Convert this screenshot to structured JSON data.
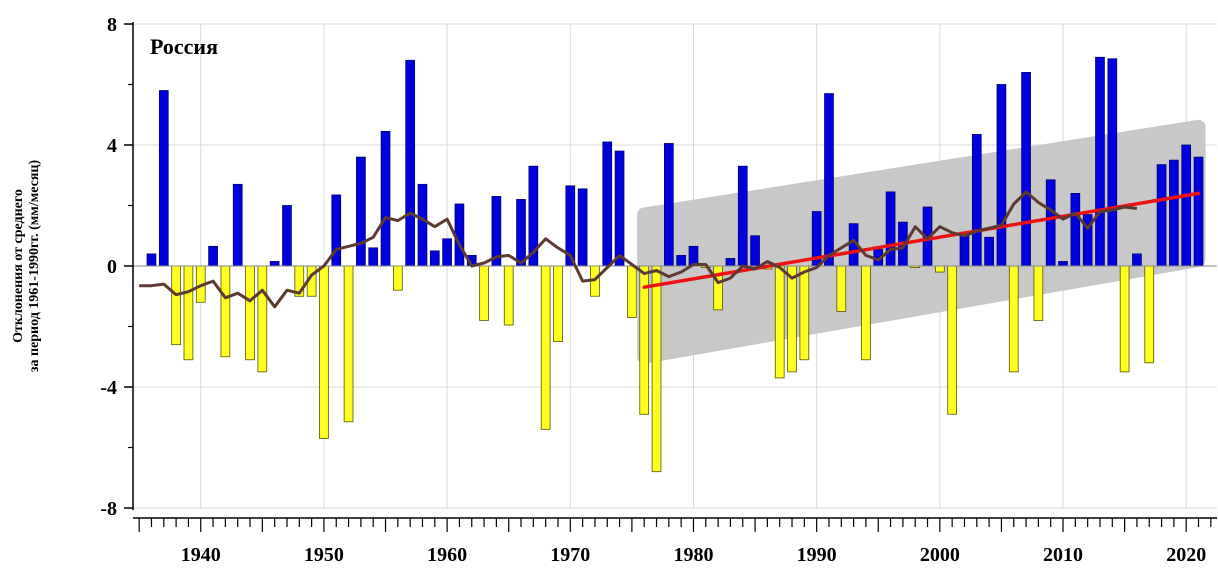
{
  "chart_data": {
    "type": "bar",
    "title": "Россия",
    "ylabel_line1": "Отклонения от среднего",
    "ylabel_line2": "за период 1961-1990гг. (мм/месяц)",
    "xlim": [
      1934.5,
      2022.5
    ],
    "ylim": [
      -8,
      8
    ],
    "grid": true,
    "x_tick_labels": [
      "1940",
      "1950",
      "1960",
      "1970",
      "1980",
      "1990",
      "2000",
      "2010",
      "2020"
    ],
    "y_tick_labels": [
      "8",
      "4",
      "0",
      "-4",
      "-8"
    ],
    "colors": {
      "positive": "#0000dd",
      "negative": "#ffff22",
      "moving_average": "#5c3a32",
      "trend": "#ee1111",
      "confidence_band": "#c8c8c8",
      "grid": "#d8d8d8"
    },
    "bars": {
      "years": [
        1936,
        1937,
        1938,
        1939,
        1940,
        1941,
        1942,
        1943,
        1944,
        1945,
        1946,
        1947,
        1948,
        1949,
        1950,
        1951,
        1952,
        1953,
        1954,
        1955,
        1956,
        1957,
        1958,
        1959,
        1960,
        1961,
        1962,
        1963,
        1964,
        1965,
        1966,
        1967,
        1968,
        1969,
        1970,
        1971,
        1972,
        1973,
        1974,
        1975,
        1976,
        1977,
        1978,
        1979,
        1980,
        1981,
        1982,
        1983,
        1984,
        1985,
        1986,
        1987,
        1988,
        1989,
        1990,
        1991,
        1992,
        1993,
        1994,
        1995,
        1996,
        1997,
        1998,
        1999,
        2000,
        2001,
        2002,
        2003,
        2004,
        2005,
        2006,
        2007,
        2008,
        2009,
        2010,
        2011,
        2012,
        2013,
        2014,
        2015,
        2016,
        2017,
        2018,
        2019,
        2020,
        2021
      ],
      "values": [
        0.4,
        5.8,
        -2.6,
        -3.1,
        -1.2,
        0.65,
        -3.0,
        2.7,
        -3.1,
        -3.5,
        0.15,
        2.0,
        -1.0,
        -1.0,
        -5.7,
        2.35,
        -5.15,
        3.6,
        0.6,
        4.45,
        -0.8,
        6.8,
        2.7,
        0.5,
        0.9,
        2.05,
        0.35,
        -1.8,
        2.3,
        -1.95,
        2.2,
        3.3,
        -5.4,
        -2.5,
        2.65,
        2.55,
        -1.0,
        4.1,
        3.8,
        -1.7,
        -4.9,
        -6.8,
        4.05,
        0.35,
        0.65,
        -0.05,
        -1.45,
        0.25,
        3.3,
        1.0,
        -0.1,
        -3.7,
        -3.5,
        -3.1,
        1.8,
        5.7,
        -1.5,
        1.4,
        -3.1,
        0.55,
        2.45,
        1.45,
        -0.05,
        1.95,
        -0.2,
        -4.9,
        1.1,
        4.35,
        0.95,
        6.0,
        -3.5,
        6.4,
        -1.8,
        2.85,
        0.15,
        2.4,
        1.7,
        6.9,
        6.85,
        -3.5,
        0.4,
        -3.2,
        3.35,
        3.5,
        4.0,
        3.6
      ]
    },
    "moving_average": {
      "years": [
        1935,
        1936,
        1937,
        1938,
        1939,
        1940,
        1941,
        1942,
        1943,
        1944,
        1945,
        1946,
        1947,
        1948,
        1949,
        1950,
        1951,
        1952,
        1953,
        1954,
        1955,
        1956,
        1957,
        1958,
        1959,
        1960,
        1961,
        1962,
        1963,
        1964,
        1965,
        1966,
        1967,
        1968,
        1969,
        1970,
        1971,
        1972,
        1973,
        1974,
        1975,
        1976,
        1977,
        1978,
        1979,
        1980,
        1981,
        1982,
        1983,
        1984,
        1985,
        1986,
        1987,
        1988,
        1989,
        1990,
        1991,
        1992,
        1993,
        1994,
        1995,
        1996,
        1997,
        1998,
        1999,
        2000,
        2001,
        2002,
        2003,
        2004,
        2005,
        2006,
        2007,
        2008,
        2009,
        2010,
        2011,
        2012,
        2013,
        2014,
        2015,
        2016
      ],
      "values": [
        -0.65,
        -0.65,
        -0.6,
        -0.95,
        -0.85,
        -0.65,
        -0.5,
        -1.05,
        -0.9,
        -1.15,
        -0.8,
        -1.35,
        -0.8,
        -0.9,
        -0.3,
        0.0,
        0.55,
        0.65,
        0.75,
        0.95,
        1.6,
        1.5,
        1.75,
        1.55,
        1.3,
        1.55,
        0.7,
        0.0,
        0.1,
        0.3,
        0.35,
        0.1,
        0.45,
        0.9,
        0.6,
        0.35,
        -0.5,
        -0.45,
        -0.05,
        0.35,
        0.05,
        -0.25,
        -0.15,
        -0.35,
        -0.2,
        0.05,
        0.05,
        -0.55,
        -0.4,
        0.0,
        -0.1,
        0.15,
        -0.05,
        -0.4,
        -0.2,
        -0.05,
        0.35,
        0.6,
        0.85,
        0.35,
        0.2,
        0.55,
        0.6,
        1.3,
        0.9,
        1.3,
        1.1,
        1.0,
        1.15,
        1.25,
        1.35,
        2.05,
        2.45,
        2.1,
        1.85,
        1.55,
        1.75,
        1.25,
        1.8,
        1.85,
        1.95,
        1.9
      ]
    },
    "trend": {
      "x": [
        1976,
        2021
      ],
      "y": [
        -0.7,
        2.4
      ]
    },
    "confidence_band": {
      "x": [
        1976,
        2021
      ],
      "upper": [
        1.7,
        4.6
      ],
      "lower": [
        -3.0,
        0.2
      ]
    }
  }
}
